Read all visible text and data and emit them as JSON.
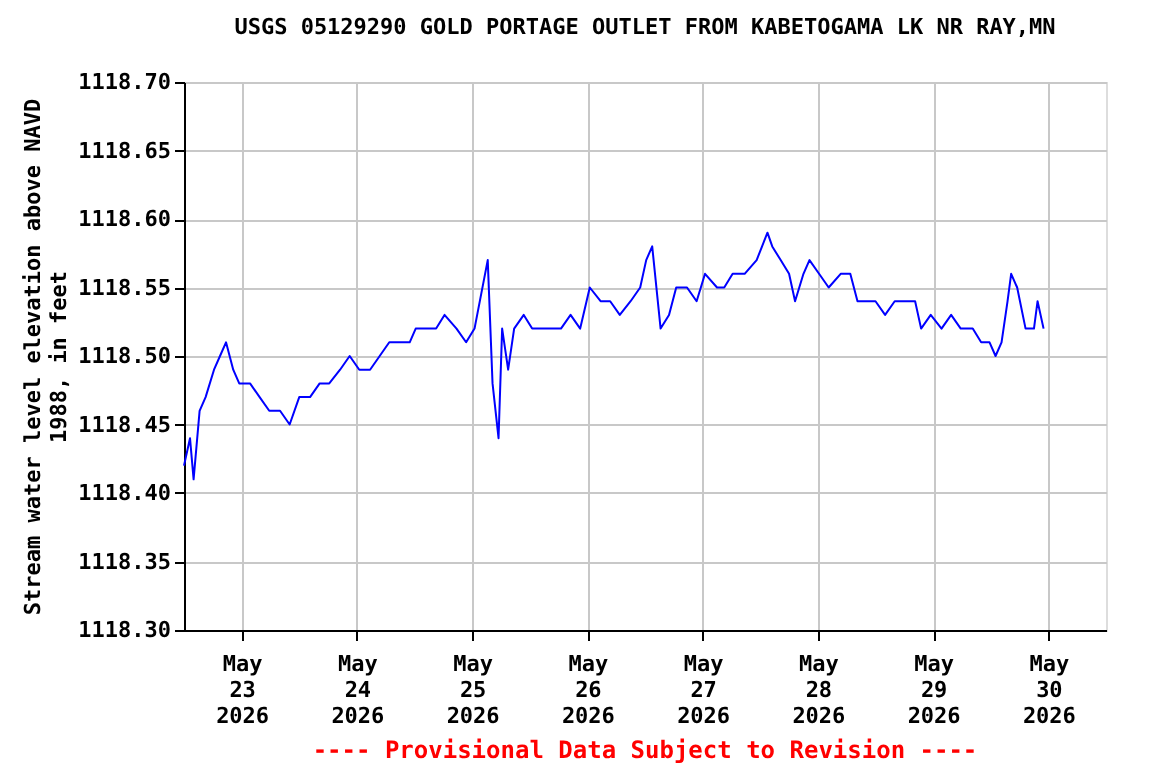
{
  "chart_data": {
    "type": "line",
    "title": "USGS 05129290 GOLD PORTAGE OUTLET FROM KABETOGAMA LK NR RAY,MN",
    "ylabel": "Stream water level elevation above NAVD\n1988, in feet",
    "annotations": [
      "---- Provisional Data Subject to Revision ----"
    ],
    "x": [
      "2026-05-22T12:00",
      "2026-05-22T13:15",
      "2026-05-22T14:00",
      "2026-05-22T15:15",
      "2026-05-22T16:30",
      "2026-05-22T18:15",
      "2026-05-22T19:30",
      "2026-05-22T20:45",
      "2026-05-22T22:15",
      "2026-05-22T23:30",
      "2026-05-23T01:45",
      "2026-05-23T03:45",
      "2026-05-23T05:45",
      "2026-05-23T08:00",
      "2026-05-23T10:00",
      "2026-05-23T12:00",
      "2026-05-23T14:15",
      "2026-05-23T16:15",
      "2026-05-23T18:15",
      "2026-05-23T20:30",
      "2026-05-23T22:30",
      "2026-05-24T00:30",
      "2026-05-24T02:45",
      "2026-05-24T04:45",
      "2026-05-24T06:45",
      "2026-05-24T09:00",
      "2026-05-24T11:00",
      "2026-05-24T12:15",
      "2026-05-24T14:00",
      "2026-05-24T16:30",
      "2026-05-24T18:15",
      "2026-05-24T20:45",
      "2026-05-24T22:45",
      "2026-05-25T00:30",
      "2026-05-25T03:15",
      "2026-05-25T04:15",
      "2026-05-25T05:30",
      "2026-05-25T06:15",
      "2026-05-25T07:30",
      "2026-05-25T08:45",
      "2026-05-25T10:45",
      "2026-05-25T12:30",
      "2026-05-25T14:15",
      "2026-05-25T16:15",
      "2026-05-25T18:30",
      "2026-05-25T20:30",
      "2026-05-25T22:30",
      "2026-05-26T00:30",
      "2026-05-26T02:45",
      "2026-05-26T04:45",
      "2026-05-26T06:45",
      "2026-05-26T09:00",
      "2026-05-26T11:00",
      "2026-05-26T12:15",
      "2026-05-26T13:30",
      "2026-05-26T15:15",
      "2026-05-26T17:00",
      "2026-05-26T18:30",
      "2026-05-26T20:45",
      "2026-05-26T22:45",
      "2026-05-27T00:30",
      "2026-05-27T03:00",
      "2026-05-27T04:30",
      "2026-05-27T06:15",
      "2026-05-27T08:45",
      "2026-05-27T11:15",
      "2026-05-27T13:30",
      "2026-05-27T14:30",
      "2026-05-27T16:15",
      "2026-05-27T18:00",
      "2026-05-27T19:15",
      "2026-05-27T21:00",
      "2026-05-27T22:15",
      "2026-05-28T00:15",
      "2026-05-28T02:15",
      "2026-05-28T04:45",
      "2026-05-28T06:45",
      "2026-05-28T08:15",
      "2026-05-28T09:45",
      "2026-05-28T12:00",
      "2026-05-28T14:00",
      "2026-05-28T16:00",
      "2026-05-28T18:15",
      "2026-05-28T20:15",
      "2026-05-28T21:30",
      "2026-05-28T23:30",
      "2026-05-29T01:45",
      "2026-05-29T03:45",
      "2026-05-29T05:45",
      "2026-05-29T08:15",
      "2026-05-29T10:00",
      "2026-05-29T11:45",
      "2026-05-29T13:00",
      "2026-05-29T14:15",
      "2026-05-29T15:30",
      "2026-05-29T16:15",
      "2026-05-29T17:30",
      "2026-05-29T19:15",
      "2026-05-29T21:00",
      "2026-05-29T21:45",
      "2026-05-29T23:00"
    ],
    "series": [
      {
        "color": "#0000ff",
        "values": [
          1118.42,
          1118.44,
          1118.41,
          1118.46,
          1118.47,
          1118.49,
          1118.5,
          1118.51,
          1118.49,
          1118.48,
          1118.48,
          1118.47,
          1118.46,
          1118.46,
          1118.45,
          1118.47,
          1118.47,
          1118.48,
          1118.48,
          1118.49,
          1118.5,
          1118.49,
          1118.49,
          1118.5,
          1118.51,
          1118.51,
          1118.51,
          1118.52,
          1118.52,
          1118.52,
          1118.53,
          1118.52,
          1118.51,
          1118.52,
          1118.57,
          1118.48,
          1118.44,
          1118.52,
          1118.49,
          1118.52,
          1118.53,
          1118.52,
          1118.52,
          1118.52,
          1118.52,
          1118.53,
          1118.52,
          1118.55,
          1118.54,
          1118.54,
          1118.53,
          1118.54,
          1118.55,
          1118.57,
          1118.58,
          1118.52,
          1118.53,
          1118.55,
          1118.55,
          1118.54,
          1118.56,
          1118.55,
          1118.55,
          1118.56,
          1118.56,
          1118.57,
          1118.59,
          1118.58,
          1118.57,
          1118.56,
          1118.54,
          1118.56,
          1118.57,
          1118.56,
          1118.55,
          1118.56,
          1118.56,
          1118.54,
          1118.54,
          1118.54,
          1118.53,
          1118.54,
          1118.54,
          1118.54,
          1118.52,
          1118.53,
          1118.52,
          1118.53,
          1118.52,
          1118.52,
          1118.51,
          1118.51,
          1118.5,
          1118.51,
          1118.54,
          1118.56,
          1118.55,
          1118.52,
          1118.52,
          1118.54,
          1118.52
        ]
      }
    ],
    "xlim": [
      "2026-05-22T12:00",
      "2026-05-30T12:00"
    ],
    "xticks": [
      {
        "value": "2026-05-23",
        "label": "May 23 2026"
      },
      {
        "value": "2026-05-24",
        "label": "May 24 2026"
      },
      {
        "value": "2026-05-25",
        "label": "May 25 2026"
      },
      {
        "value": "2026-05-26",
        "label": "May 26 2026"
      },
      {
        "value": "2026-05-27",
        "label": "May 27 2026"
      },
      {
        "value": "2026-05-28",
        "label": "May 28 2026"
      },
      {
        "value": "2026-05-29",
        "label": "May 29 2026"
      },
      {
        "value": "2026-05-30",
        "label": "May 30 2026"
      }
    ],
    "ylim": [
      1118.3,
      1118.7
    ],
    "yticks": [
      {
        "value": 1118.3,
        "label": "1118.30"
      },
      {
        "value": 1118.35,
        "label": "1118.35"
      },
      {
        "value": 1118.4,
        "label": "1118.40"
      },
      {
        "value": 1118.45,
        "label": "1118.45"
      },
      {
        "value": 1118.5,
        "label": "1118.50"
      },
      {
        "value": 1118.55,
        "label": "1118.55"
      },
      {
        "value": 1118.6,
        "label": "1118.60"
      },
      {
        "value": 1118.65,
        "label": "1118.65"
      },
      {
        "value": 1118.7,
        "label": "1118.70"
      }
    ],
    "grid": true,
    "legend": false,
    "marker": "none",
    "line_style": "solid"
  }
}
